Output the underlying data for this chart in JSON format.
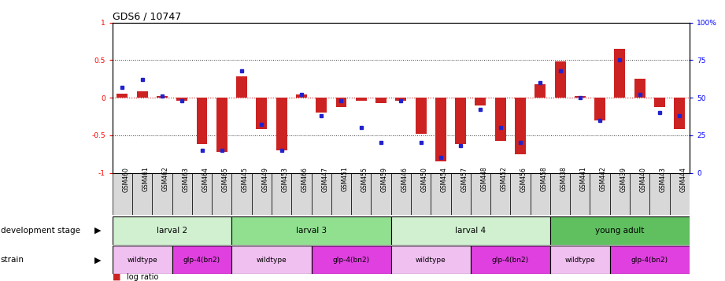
{
  "title": "GDS6 / 10747",
  "samples": [
    "GSM460",
    "GSM461",
    "GSM462",
    "GSM463",
    "GSM464",
    "GSM465",
    "GSM445",
    "GSM449",
    "GSM453",
    "GSM466",
    "GSM447",
    "GSM451",
    "GSM455",
    "GSM459",
    "GSM446",
    "GSM450",
    "GSM454",
    "GSM457",
    "GSM448",
    "GSM452",
    "GSM456",
    "GSM458",
    "GSM438",
    "GSM441",
    "GSM442",
    "GSM439",
    "GSM440",
    "GSM443",
    "GSM444"
  ],
  "log_ratio": [
    0.05,
    0.08,
    0.02,
    -0.04,
    -0.62,
    -0.72,
    0.28,
    -0.42,
    -0.7,
    0.04,
    -0.2,
    -0.12,
    -0.04,
    -0.07,
    -0.04,
    -0.48,
    -0.85,
    -0.62,
    -0.1,
    -0.58,
    -0.75,
    0.18,
    0.48,
    0.02,
    -0.3,
    0.65,
    0.25,
    -0.12,
    -0.42
  ],
  "percentile": [
    57,
    62,
    51,
    48,
    15,
    15,
    68,
    32,
    15,
    52,
    38,
    48,
    30,
    20,
    48,
    20,
    10,
    18,
    42,
    30,
    20,
    60,
    68,
    50,
    35,
    75,
    52,
    40,
    38
  ],
  "development_stages": [
    {
      "label": "larval 2",
      "start": 0,
      "end": 6,
      "color": "#d0f0d0"
    },
    {
      "label": "larval 3",
      "start": 6,
      "end": 14,
      "color": "#90e090"
    },
    {
      "label": "larval 4",
      "start": 14,
      "end": 22,
      "color": "#d0f0d0"
    },
    {
      "label": "young adult",
      "start": 22,
      "end": 29,
      "color": "#60c060"
    }
  ],
  "strains": [
    {
      "label": "wildtype",
      "start": 0,
      "end": 3,
      "color": "#f0c0f0"
    },
    {
      "label": "glp-4(bn2)",
      "start": 3,
      "end": 6,
      "color": "#e040e0"
    },
    {
      "label": "wildtype",
      "start": 6,
      "end": 10,
      "color": "#f0c0f0"
    },
    {
      "label": "glp-4(bn2)",
      "start": 10,
      "end": 14,
      "color": "#e040e0"
    },
    {
      "label": "wildtype",
      "start": 14,
      "end": 18,
      "color": "#f0c0f0"
    },
    {
      "label": "glp-4(bn2)",
      "start": 18,
      "end": 22,
      "color": "#e040e0"
    },
    {
      "label": "wildtype",
      "start": 22,
      "end": 25,
      "color": "#f0c0f0"
    },
    {
      "label": "glp-4(bn2)",
      "start": 25,
      "end": 29,
      "color": "#e040e0"
    }
  ],
  "ylim": [
    -1.0,
    1.0
  ],
  "yticks_left": [
    -1,
    -0.5,
    0,
    0.5,
    1
  ],
  "yticklabels_left": [
    "-1",
    "-0.5",
    "0",
    "0.5",
    "1"
  ],
  "yticks_right": [
    0,
    25,
    50,
    75,
    100
  ],
  "yticklabels_right": [
    "0",
    "25",
    "50",
    "75",
    "100%"
  ],
  "bar_color": "#cc2222",
  "dot_color": "#2222cc",
  "zero_line_color": "#cc2222",
  "hline_color": "#333333",
  "tick_bg_color": "#d8d8d8"
}
